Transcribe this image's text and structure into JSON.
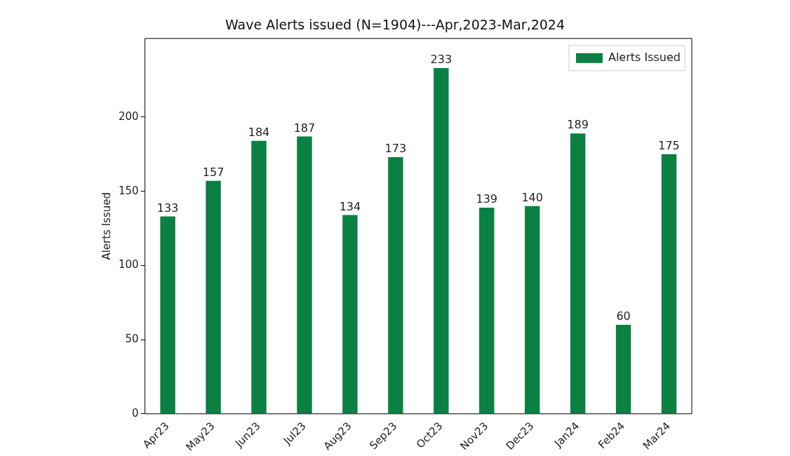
{
  "chart_data": {
    "type": "bar",
    "title": "Wave Alerts issued (N=1904)---Apr,2023-Mar,2024",
    "ylabel": "Alerts Issued",
    "categories": [
      "Apr23",
      "May23",
      "Jun23",
      "Jul23",
      "Aug23",
      "Sep23",
      "Oct23",
      "Nov23",
      "Dec23",
      "Jan24",
      "Feb24",
      "Mar24"
    ],
    "series": [
      {
        "name": "Alerts Issued",
        "color": "#0b8043",
        "values": [
          133,
          157,
          184,
          187,
          134,
          173,
          233,
          139,
          140,
          189,
          60,
          175
        ]
      }
    ],
    "ylim": [
      0,
      253
    ],
    "yticks": [
      0,
      50,
      100,
      150,
      200
    ],
    "grid": false,
    "legend": "top right",
    "data_labels": true
  }
}
